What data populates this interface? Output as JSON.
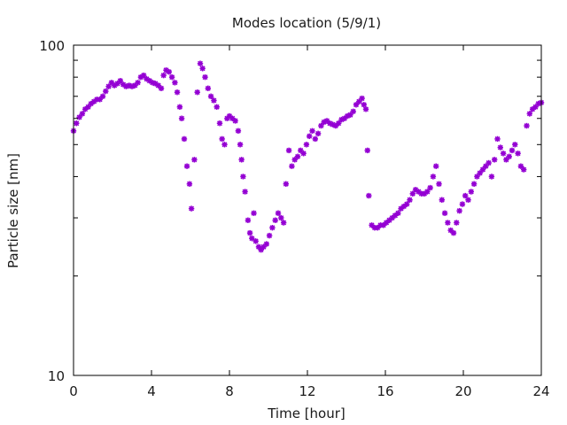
{
  "chart_data": {
    "type": "scatter",
    "title": "Modes location (5/9/1)",
    "xlabel": "Time [hour]",
    "ylabel": "Particle size [nm]",
    "xlim": [
      0,
      24
    ],
    "ylim": [
      10,
      100
    ],
    "yscale": "log",
    "grid": false,
    "marker_color": "#9400d3",
    "marker": "asterisk",
    "x_ticks": [
      0,
      4,
      8,
      12,
      16,
      20,
      24
    ],
    "x_tick_labels": [
      "0",
      "4",
      "8",
      "12",
      "16",
      "20",
      "24"
    ],
    "y_ticks": [
      10,
      100
    ],
    "y_tick_labels": [
      "10",
      "100"
    ],
    "series": [
      {
        "points": [
          [
            0.0,
            55.0
          ],
          [
            0.15,
            58.0
          ],
          [
            0.3,
            60.5
          ],
          [
            0.45,
            62.0
          ],
          [
            0.6,
            64.0
          ],
          [
            0.75,
            65.0
          ],
          [
            0.9,
            66.5
          ],
          [
            1.05,
            67.5
          ],
          [
            1.2,
            68.5
          ],
          [
            1.35,
            68.5
          ],
          [
            1.5,
            70.0
          ],
          [
            1.65,
            72.5
          ],
          [
            1.8,
            75.0
          ],
          [
            1.95,
            77.0
          ],
          [
            2.1,
            75.5
          ],
          [
            2.25,
            76.5
          ],
          [
            2.4,
            78.0
          ],
          [
            2.55,
            76.0
          ],
          [
            2.7,
            75.0
          ],
          [
            2.85,
            75.5
          ],
          [
            3.0,
            75.0
          ],
          [
            3.15,
            75.5
          ],
          [
            3.3,
            77.0
          ],
          [
            3.45,
            80.0
          ],
          [
            3.6,
            81.0
          ],
          [
            3.75,
            79.0
          ],
          [
            3.9,
            78.0
          ],
          [
            4.05,
            77.0
          ],
          [
            4.2,
            76.5
          ],
          [
            4.35,
            75.5
          ],
          [
            4.5,
            74.0
          ],
          [
            4.62,
            81.0
          ],
          [
            4.75,
            84.0
          ],
          [
            4.9,
            83.0
          ],
          [
            5.05,
            80.0
          ],
          [
            5.2,
            77.0
          ],
          [
            5.32,
            72.0
          ],
          [
            5.45,
            65.0
          ],
          [
            5.55,
            60.0
          ],
          [
            5.68,
            52.0
          ],
          [
            5.82,
            43.0
          ],
          [
            5.95,
            38.0
          ],
          [
            6.05,
            32.0
          ],
          [
            6.2,
            45.0
          ],
          [
            6.35,
            72.0
          ],
          [
            6.5,
            88.0
          ],
          [
            6.62,
            85.0
          ],
          [
            6.75,
            80.0
          ],
          [
            6.9,
            74.0
          ],
          [
            7.05,
            70.0
          ],
          [
            7.2,
            68.0
          ],
          [
            7.35,
            65.0
          ],
          [
            7.5,
            58.0
          ],
          [
            7.62,
            52.0
          ],
          [
            7.75,
            50.0
          ],
          [
            7.88,
            60.0
          ],
          [
            8.0,
            61.0
          ],
          [
            8.15,
            60.0
          ],
          [
            8.3,
            59.0
          ],
          [
            8.45,
            55.0
          ],
          [
            8.55,
            50.0
          ],
          [
            8.62,
            45.0
          ],
          [
            8.7,
            40.0
          ],
          [
            8.8,
            36.0
          ],
          [
            8.95,
            29.5
          ],
          [
            9.05,
            27.0
          ],
          [
            9.15,
            26.0
          ],
          [
            9.25,
            31.0
          ],
          [
            9.35,
            25.5
          ],
          [
            9.5,
            24.5
          ],
          [
            9.62,
            24.0
          ],
          [
            9.75,
            24.5
          ],
          [
            9.9,
            25.0
          ],
          [
            10.05,
            26.5
          ],
          [
            10.2,
            28.0
          ],
          [
            10.35,
            29.5
          ],
          [
            10.5,
            31.0
          ],
          [
            10.65,
            30.0
          ],
          [
            10.78,
            29.0
          ],
          [
            10.9,
            38.0
          ],
          [
            11.05,
            48.0
          ],
          [
            11.2,
            43.0
          ],
          [
            11.35,
            45.0
          ],
          [
            11.5,
            46.0
          ],
          [
            11.65,
            48.0
          ],
          [
            11.8,
            47.0
          ],
          [
            11.95,
            50.0
          ],
          [
            12.1,
            53.0
          ],
          [
            12.25,
            55.0
          ],
          [
            12.4,
            52.0
          ],
          [
            12.55,
            54.0
          ],
          [
            12.7,
            57.0
          ],
          [
            12.85,
            58.5
          ],
          [
            13.0,
            59.0
          ],
          [
            13.15,
            58.0
          ],
          [
            13.3,
            57.5
          ],
          [
            13.45,
            57.0
          ],
          [
            13.6,
            58.0
          ],
          [
            13.75,
            59.5
          ],
          [
            13.9,
            60.0
          ],
          [
            14.05,
            61.0
          ],
          [
            14.2,
            61.5
          ],
          [
            14.35,
            63.0
          ],
          [
            14.5,
            66.0
          ],
          [
            14.65,
            67.5
          ],
          [
            14.8,
            69.0
          ],
          [
            14.9,
            66.0
          ],
          [
            15.0,
            64.0
          ],
          [
            15.08,
            48.0
          ],
          [
            15.15,
            35.0
          ],
          [
            15.3,
            28.5
          ],
          [
            15.45,
            28.0
          ],
          [
            15.6,
            28.0
          ],
          [
            15.75,
            28.5
          ],
          [
            15.9,
            28.5
          ],
          [
            16.05,
            29.0
          ],
          [
            16.2,
            29.5
          ],
          [
            16.35,
            30.0
          ],
          [
            16.5,
            30.5
          ],
          [
            16.65,
            31.0
          ],
          [
            16.8,
            32.0
          ],
          [
            16.95,
            32.5
          ],
          [
            17.1,
            33.0
          ],
          [
            17.25,
            34.0
          ],
          [
            17.4,
            35.5
          ],
          [
            17.55,
            36.5
          ],
          [
            17.7,
            36.0
          ],
          [
            17.85,
            35.5
          ],
          [
            18.0,
            35.5
          ],
          [
            18.15,
            36.0
          ],
          [
            18.3,
            37.0
          ],
          [
            18.45,
            40.0
          ],
          [
            18.6,
            43.0
          ],
          [
            18.75,
            38.0
          ],
          [
            18.9,
            34.0
          ],
          [
            19.05,
            31.0
          ],
          [
            19.2,
            29.0
          ],
          [
            19.35,
            27.5
          ],
          [
            19.5,
            27.0
          ],
          [
            19.65,
            29.0
          ],
          [
            19.8,
            31.5
          ],
          [
            19.95,
            33.0
          ],
          [
            20.1,
            35.0
          ],
          [
            20.25,
            34.0
          ],
          [
            20.4,
            36.0
          ],
          [
            20.55,
            38.0
          ],
          [
            20.7,
            40.0
          ],
          [
            20.85,
            41.0
          ],
          [
            21.0,
            42.0
          ],
          [
            21.15,
            43.0
          ],
          [
            21.3,
            44.0
          ],
          [
            21.45,
            40.0
          ],
          [
            21.6,
            45.0
          ],
          [
            21.75,
            52.0
          ],
          [
            21.9,
            49.0
          ],
          [
            22.05,
            47.0
          ],
          [
            22.2,
            45.0
          ],
          [
            22.35,
            46.0
          ],
          [
            22.5,
            48.0
          ],
          [
            22.65,
            50.0
          ],
          [
            22.8,
            47.0
          ],
          [
            22.95,
            43.0
          ],
          [
            23.1,
            42.0
          ],
          [
            23.25,
            57.0
          ],
          [
            23.4,
            62.0
          ],
          [
            23.55,
            64.0
          ],
          [
            23.7,
            65.0
          ],
          [
            23.85,
            66.5
          ],
          [
            24.0,
            67.0
          ]
        ]
      }
    ]
  }
}
